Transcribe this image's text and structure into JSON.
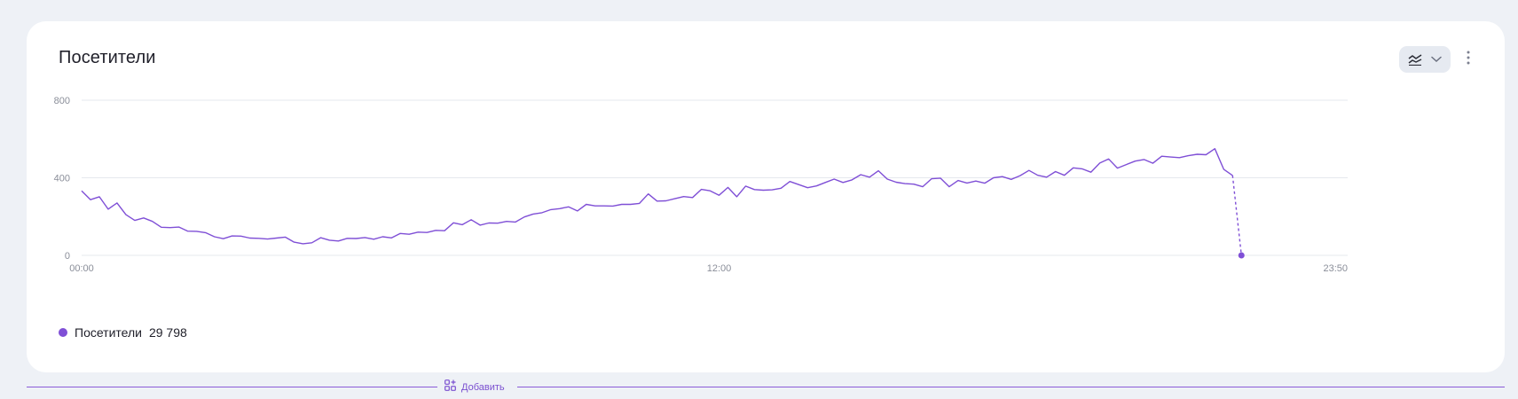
{
  "card": {
    "title": "Посетители"
  },
  "toolbar": {
    "chart_type_icon": "line-chart-icon",
    "dropdown_icon": "chevron-down-icon",
    "menu_icon": "vertical-dots-icon"
  },
  "colors": {
    "series": "#7f4fd6",
    "grid": "#e6e8ee",
    "tick": "#8a8e99",
    "background": "#eef1f6"
  },
  "legend": {
    "label": "Посетители",
    "value": "29 798"
  },
  "add_bar": {
    "label": "Добавить",
    "icon": "add-widget-icon"
  },
  "chart_data": {
    "type": "line",
    "title": "Посетители",
    "xlabel": "",
    "ylabel": "",
    "x_ticks": [
      "00:00",
      "12:00",
      "23:50"
    ],
    "y_ticks": [
      0,
      400,
      800
    ],
    "ylim": [
      0,
      800
    ],
    "grid": true,
    "legend_position": "bottom-left",
    "x_range": [
      "00:00",
      "23:50"
    ],
    "series": [
      {
        "name": "Посетители",
        "x_interval_minutes": 10,
        "values": [
          333,
          287,
          302,
          238,
          270,
          210,
          180,
          193,
          175,
          145,
          143,
          146,
          125,
          124,
          117,
          96,
          86,
          100,
          99,
          89,
          88,
          84,
          89,
          94,
          68,
          60,
          65,
          91,
          78,
          74,
          88,
          87,
          92,
          83,
          96,
          90,
          113,
          109,
          120,
          118,
          129,
          127,
          168,
          158,
          184,
          156,
          167,
          166,
          175,
          172,
          198,
          213,
          220,
          236,
          241,
          250,
          229,
          263,
          255,
          255,
          254,
          263,
          263,
          268,
          317,
          280,
          281,
          292,
          303,
          298,
          340,
          333,
          310,
          350,
          302,
          357,
          339,
          336,
          338,
          346,
          381,
          365,
          349,
          358,
          376,
          393,
          376,
          389,
          416,
          403,
          436,
          393,
          377,
          370,
          367,
          354,
          395,
          398,
          354,
          386,
          373,
          383,
          372,
          400,
          406,
          392,
          411,
          438,
          413,
          403,
          432,
          413,
          451,
          446,
          429,
          476,
          497,
          450,
          468,
          486,
          494,
          475,
          511,
          507,
          504,
          514,
          521,
          519,
          550,
          444,
          412,
          0
        ]
      }
    ]
  }
}
